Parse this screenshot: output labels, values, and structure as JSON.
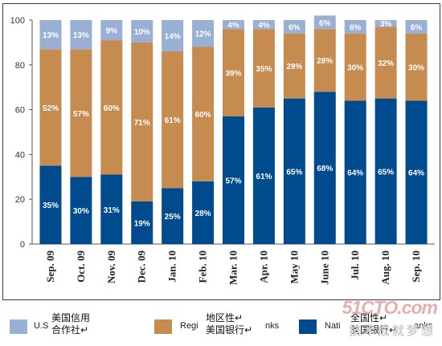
{
  "chart_data": {
    "type": "bar",
    "stacked": true,
    "categories": [
      "Sep. 09",
      "Oct. 09",
      "Nov. 09",
      "Dec. 09",
      "Jan. 10",
      "Feb. 10",
      "Mar. 10",
      "Apr. 10",
      "May 10",
      "June 10",
      "Jul. 10",
      "Aug. 10",
      "Sep. 10"
    ],
    "series": [
      {
        "name": "National Banks",
        "color": "#004b8d",
        "values": [
          35,
          30,
          31,
          19,
          25,
          28,
          57,
          61,
          65,
          68,
          64,
          65,
          64
        ],
        "labels": [
          "35%",
          "30%",
          "31%",
          "19%",
          "25%",
          "28%",
          "57%",
          "61%",
          "65%",
          "68%",
          "64%",
          "65%",
          "64%"
        ]
      },
      {
        "name": "Regional Banks",
        "color": "#c68b4f",
        "values": [
          52,
          57,
          60,
          71,
          61,
          60,
          39,
          35,
          29,
          28,
          30,
          32,
          30
        ],
        "labels": [
          "52%",
          "57%",
          "60%",
          "71%",
          "61%",
          "60%",
          "39%",
          "35%",
          "29%",
          "28%",
          "30%",
          "32%",
          "30%"
        ]
      },
      {
        "name": "U.S.",
        "color": "#9aafd4",
        "values": [
          13,
          13,
          9,
          10,
          14,
          12,
          4,
          4,
          6,
          6,
          6,
          3,
          6
        ],
        "labels": [
          "13%",
          "13%",
          "9%",
          "10%",
          "14%",
          "12%",
          "4%",
          "4%",
          "6%",
          "6%",
          "6%",
          "3%",
          "6%"
        ]
      }
    ],
    "ylim": [
      0,
      100
    ],
    "yticks": [
      "0",
      "20",
      "40",
      "60",
      "80",
      "100"
    ],
    "grid": false,
    "legend_position": "bottom"
  },
  "legend": [
    {
      "en": "U.S",
      "cn": "美国信用\n合作社↵",
      "color": "#9aafd4"
    },
    {
      "en": "Regi",
      "en2": "nks",
      "cn": "地区性↵\n美国银行↵",
      "color": "#c68b4f"
    },
    {
      "en": "Nati",
      "en2": "anks",
      "cn": "全国性↵\n美国银行↵",
      "color": "#004b8d"
    }
  ],
  "watermark": {
    "main": "51CTO.com",
    "sub": "技术成就梦想"
  }
}
